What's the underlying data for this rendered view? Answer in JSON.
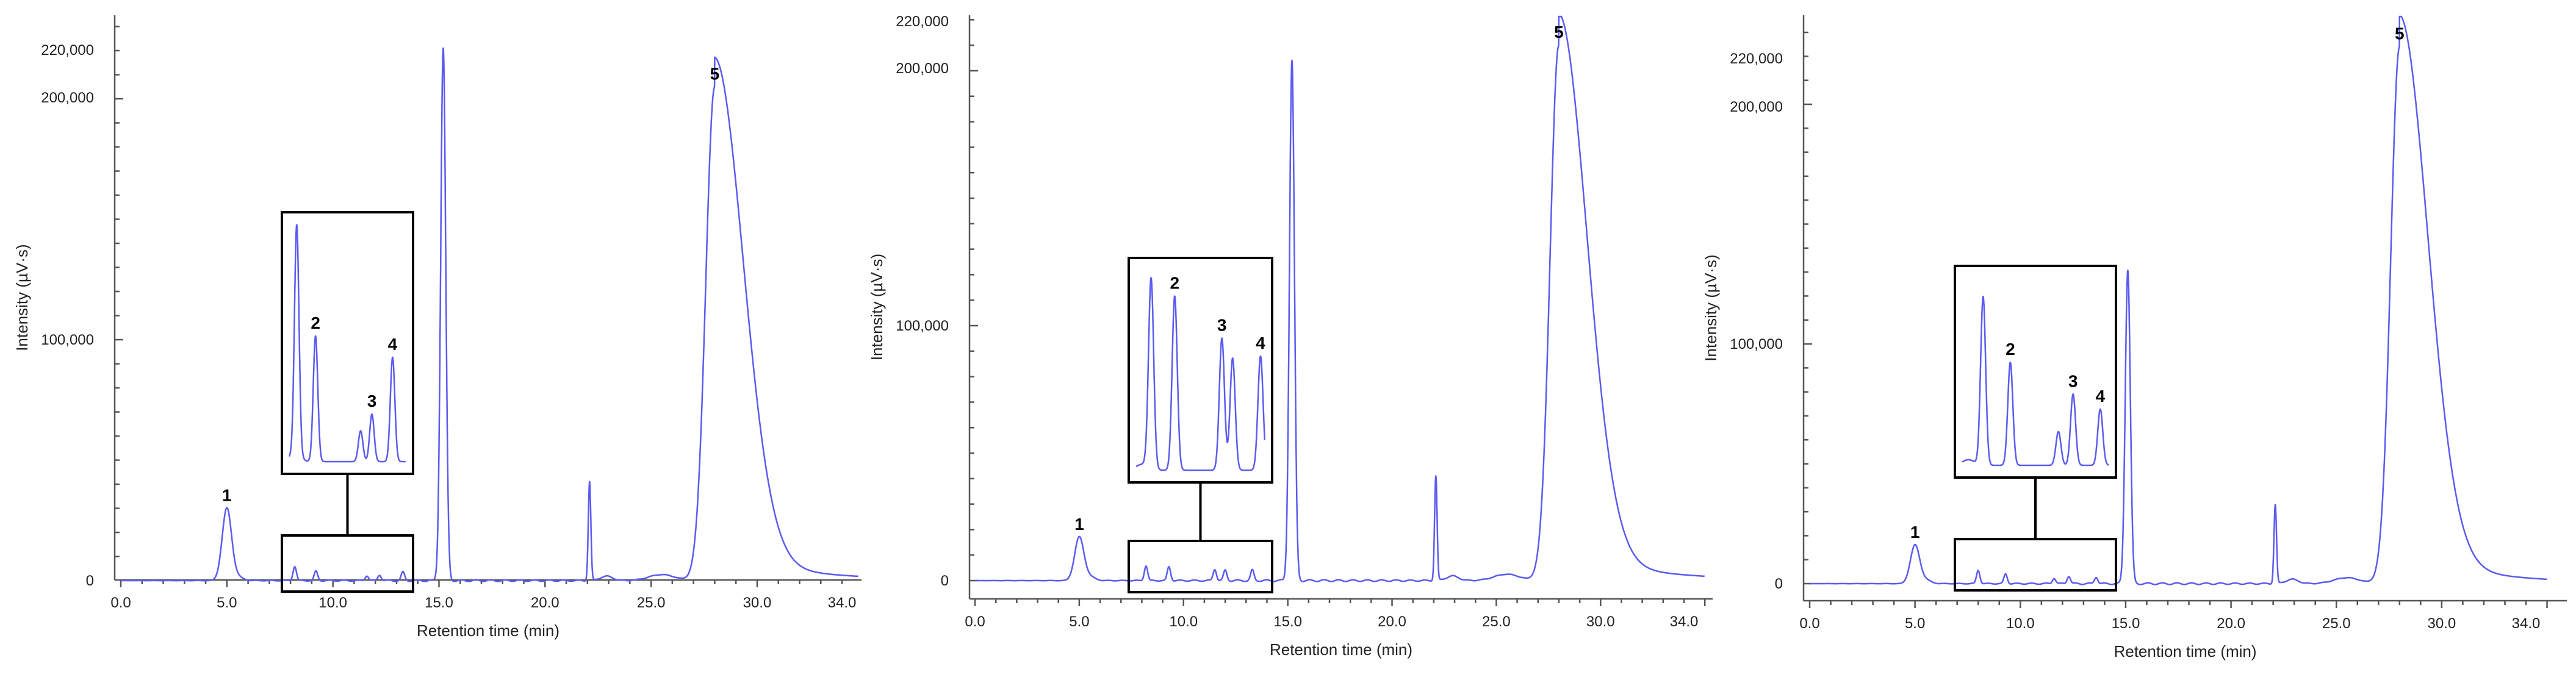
{
  "colors": {
    "trace": "#5b5bf0",
    "axis": "#555555",
    "box": "#000000"
  },
  "chart_data": [
    {
      "type": "line",
      "xlabel": "Retention time (min)",
      "ylabel": "Intensity (µV·s)",
      "xlim": [
        0,
        35
      ],
      "ylim": [
        -12000,
        226000
      ],
      "x_ticks": [
        "0.0",
        "5.0",
        "10.0",
        "15.0",
        "20.0",
        "25.0",
        "30.0",
        "34.0"
      ],
      "y_ticks": [
        "0",
        "100,000",
        "200,000",
        "220,000"
      ],
      "peaks": [
        {
          "label": "1",
          "x": 5.0,
          "y": 30000
        },
        {
          "label": "",
          "x": 15.2,
          "y": 221000
        },
        {
          "label": "",
          "x": 22.1,
          "y": 41000
        },
        {
          "label": "5",
          "x": 28.0,
          "y": 205000
        }
      ],
      "inset": {
        "x_range": [
          7.8,
          14.0
        ],
        "peaks": [
          {
            "label": "",
            "x": 8.2,
            "rel": 0.97
          },
          {
            "label": "2",
            "x": 9.2,
            "rel": 0.53
          },
          {
            "label": "",
            "x": 11.6,
            "rel": 0.13
          },
          {
            "label": "3",
            "x": 12.2,
            "rel": 0.2
          },
          {
            "label": "4",
            "x": 13.3,
            "rel": 0.44
          }
        ]
      }
    },
    {
      "type": "line",
      "xlabel": "Retention time (min)",
      "ylabel": "Intensity (µV·s)",
      "xlim": [
        0,
        35
      ],
      "ylim": [
        -12000,
        226000
      ],
      "x_ticks": [
        "0.0",
        "5.0",
        "10.0",
        "15.0",
        "20.0",
        "25.0",
        "30.0",
        "34.0"
      ],
      "y_ticks": [
        "0",
        "100,000",
        "200,000",
        "220,000"
      ],
      "peaks": [
        {
          "label": "1",
          "x": 5.0,
          "y": 17000
        },
        {
          "label": "",
          "x": 15.2,
          "y": 204000
        },
        {
          "label": "",
          "x": 22.1,
          "y": 41000
        },
        {
          "label": "5",
          "x": 28.0,
          "y": 210000
        }
      ],
      "inset": {
        "x_range": [
          7.5,
          13.5
        ],
        "peaks": [
          {
            "label": "",
            "x": 8.2,
            "rel": 0.95
          },
          {
            "label": "2",
            "x": 9.3,
            "rel": 0.87
          },
          {
            "label": "3",
            "x": 11.5,
            "rel": 0.66
          },
          {
            "label": "",
            "x": 12.0,
            "rel": 0.56
          },
          {
            "label": "4",
            "x": 13.3,
            "rel": 0.57
          }
        ]
      }
    },
    {
      "type": "line",
      "xlabel": "Retention time (min)",
      "ylabel": "Intensity (µV·s)",
      "xlim": [
        0,
        35
      ],
      "ylim": [
        -12000,
        226000
      ],
      "x_ticks": [
        "0.0",
        "5.0",
        "10.0",
        "15.0",
        "20.0",
        "25.0",
        "30.0",
        "34.0"
      ],
      "y_ticks": [
        "0",
        "100,000",
        "200,000",
        "220,000"
      ],
      "peaks": [
        {
          "label": "1",
          "x": 5.0,
          "y": 16000
        },
        {
          "label": "",
          "x": 15.1,
          "y": 131000
        },
        {
          "label": "",
          "x": 22.1,
          "y": 33000
        },
        {
          "label": "5",
          "x": 28.0,
          "y": 224000
        }
      ],
      "inset": {
        "x_range": [
          7.0,
          14.0
        ],
        "peaks": [
          {
            "label": "",
            "x": 8.0,
            "rel": 0.9
          },
          {
            "label": "2",
            "x": 9.3,
            "rel": 0.55
          },
          {
            "label": "",
            "x": 11.6,
            "rel": 0.18
          },
          {
            "label": "3",
            "x": 12.3,
            "rel": 0.38
          },
          {
            "label": "4",
            "x": 13.6,
            "rel": 0.3
          }
        ]
      }
    }
  ]
}
